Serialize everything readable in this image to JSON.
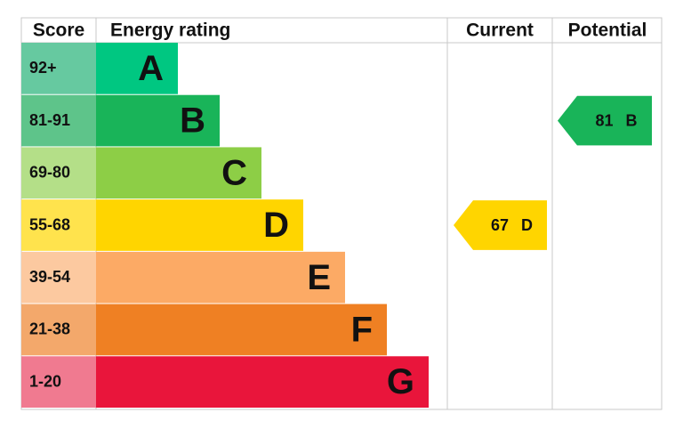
{
  "header": {
    "score": "Score",
    "rating": "Energy rating",
    "current": "Current",
    "potential": "Potential"
  },
  "bands": [
    {
      "range": "92+",
      "letter": "A",
      "color": "#00c781",
      "score_color": "#66c9a0"
    },
    {
      "range": "81-91",
      "letter": "B",
      "color": "#19b459",
      "score_color": "#5ec48a"
    },
    {
      "range": "69-80",
      "letter": "C",
      "color": "#8dce46",
      "score_color": "#b4df88"
    },
    {
      "range": "55-68",
      "letter": "D",
      "color": "#ffd500",
      "score_color": "#ffe34d"
    },
    {
      "range": "39-54",
      "letter": "E",
      "color": "#fcaa65",
      "score_color": "#fcc9a0"
    },
    {
      "range": "21-38",
      "letter": "F",
      "color": "#ef8023",
      "score_color": "#f3a86b"
    },
    {
      "range": "1-20",
      "letter": "G",
      "color": "#e9153b",
      "score_color": "#f07a90"
    }
  ],
  "current": {
    "score": 67,
    "band": "D"
  },
  "potential": {
    "score": 81,
    "band": "B"
  }
}
